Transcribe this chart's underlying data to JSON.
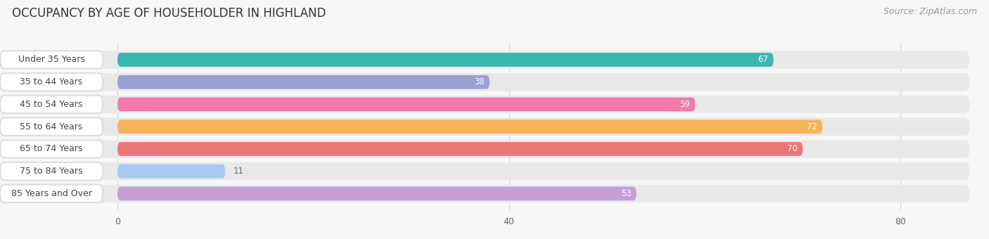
{
  "title": "OCCUPANCY BY AGE OF HOUSEHOLDER IN HIGHLAND",
  "source": "Source: ZipAtlas.com",
  "categories": [
    "Under 35 Years",
    "35 to 44 Years",
    "45 to 54 Years",
    "55 to 64 Years",
    "65 to 74 Years",
    "75 to 84 Years",
    "85 Years and Over"
  ],
  "values": [
    67,
    38,
    59,
    72,
    70,
    11,
    53
  ],
  "bar_colors": [
    "#3ab8b0",
    "#9b9fd4",
    "#f07aaa",
    "#f5b45a",
    "#e87878",
    "#a8c8f0",
    "#c49fd4"
  ],
  "label_bg_color": "#ffffff",
  "xlim_min": -12,
  "xlim_max": 87,
  "xticks": [
    0,
    40,
    80
  ],
  "background_color": "#f7f7f7",
  "bar_bg_color": "#e8e8e8",
  "title_fontsize": 12,
  "source_fontsize": 9,
  "label_fontsize": 9,
  "value_fontsize": 8.5,
  "label_text_color": "#444444"
}
